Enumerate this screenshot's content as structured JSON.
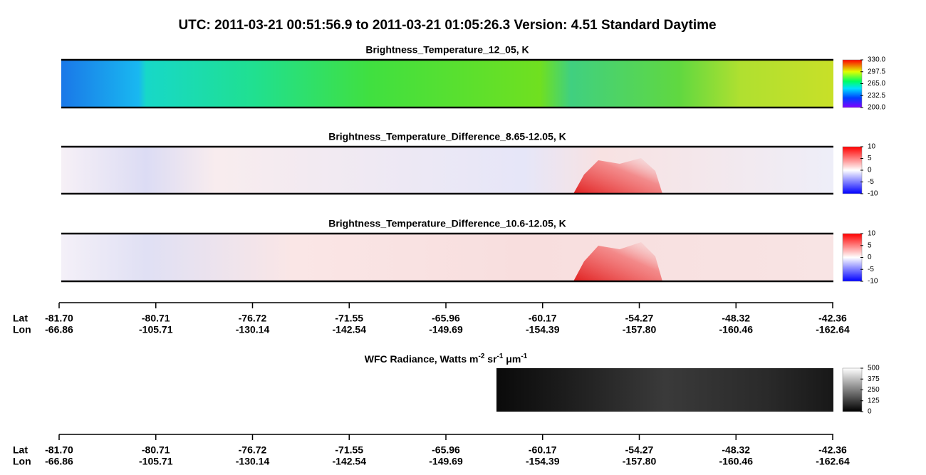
{
  "title": "UTC:  2011-03-21   00:51:56.9  to  2011-03-21   01:05:26.3    Version: 4.51  Standard Daytime",
  "panels": [
    {
      "title": "Brightness_Temperature_12_05, K",
      "colorbar": {
        "lim": [
          200,
          330
        ],
        "ticks": [
          {
            "value": 200,
            "label": "200.0"
          },
          232.5,
          {
            "value": 265,
            "label": "265.0"
          },
          297.5,
          {
            "value": 330,
            "label": "330.0"
          }
        ]
      }
    },
    {
      "title": "Brightness_Temperature_Difference_8.65-12.05, K",
      "colorbar": {
        "lim": [
          -10,
          10
        ],
        "ticks": [
          -10,
          -5,
          0,
          5,
          10
        ]
      }
    },
    {
      "title": "Brightness_Temperature_Difference_10.6-12.05, K",
      "colorbar": {
        "lim": [
          -10,
          10
        ],
        "ticks": [
          -10,
          -5,
          0,
          5,
          10
        ]
      }
    }
  ],
  "wfc": {
    "title_parts": [
      "WFC Radiance, Watts m",
      "-2",
      " sr",
      "-1",
      " μm",
      "-1"
    ],
    "colorbar": {
      "lim": [
        0,
        500
      ],
      "ticks": [
        0,
        125,
        250,
        375,
        500
      ]
    }
  },
  "axes": [
    {
      "row_labels": [
        "Lat",
        "Lon"
      ],
      "lat": [
        "-81.70",
        "-80.71",
        "-76.72",
        "-71.55",
        "-65.96",
        "-60.17",
        "-54.27",
        "-48.32",
        "-42.36"
      ],
      "lon": [
        "-66.86",
        "-105.71",
        "-130.14",
        "-142.54",
        "-149.69",
        "-154.39",
        "-157.80",
        "-160.46",
        "-162.64"
      ]
    },
    {
      "row_labels": [
        "Lat",
        "Lon"
      ],
      "lat": [
        "-81.70",
        "-80.71",
        "-76.72",
        "-71.55",
        "-65.96",
        "-60.17",
        "-54.27",
        "-48.32",
        "-42.36"
      ],
      "lon": [
        "-66.86",
        "-105.71",
        "-130.14",
        "-142.54",
        "-149.69",
        "-154.39",
        "-157.80",
        "-160.46",
        "-162.64"
      ]
    }
  ]
}
